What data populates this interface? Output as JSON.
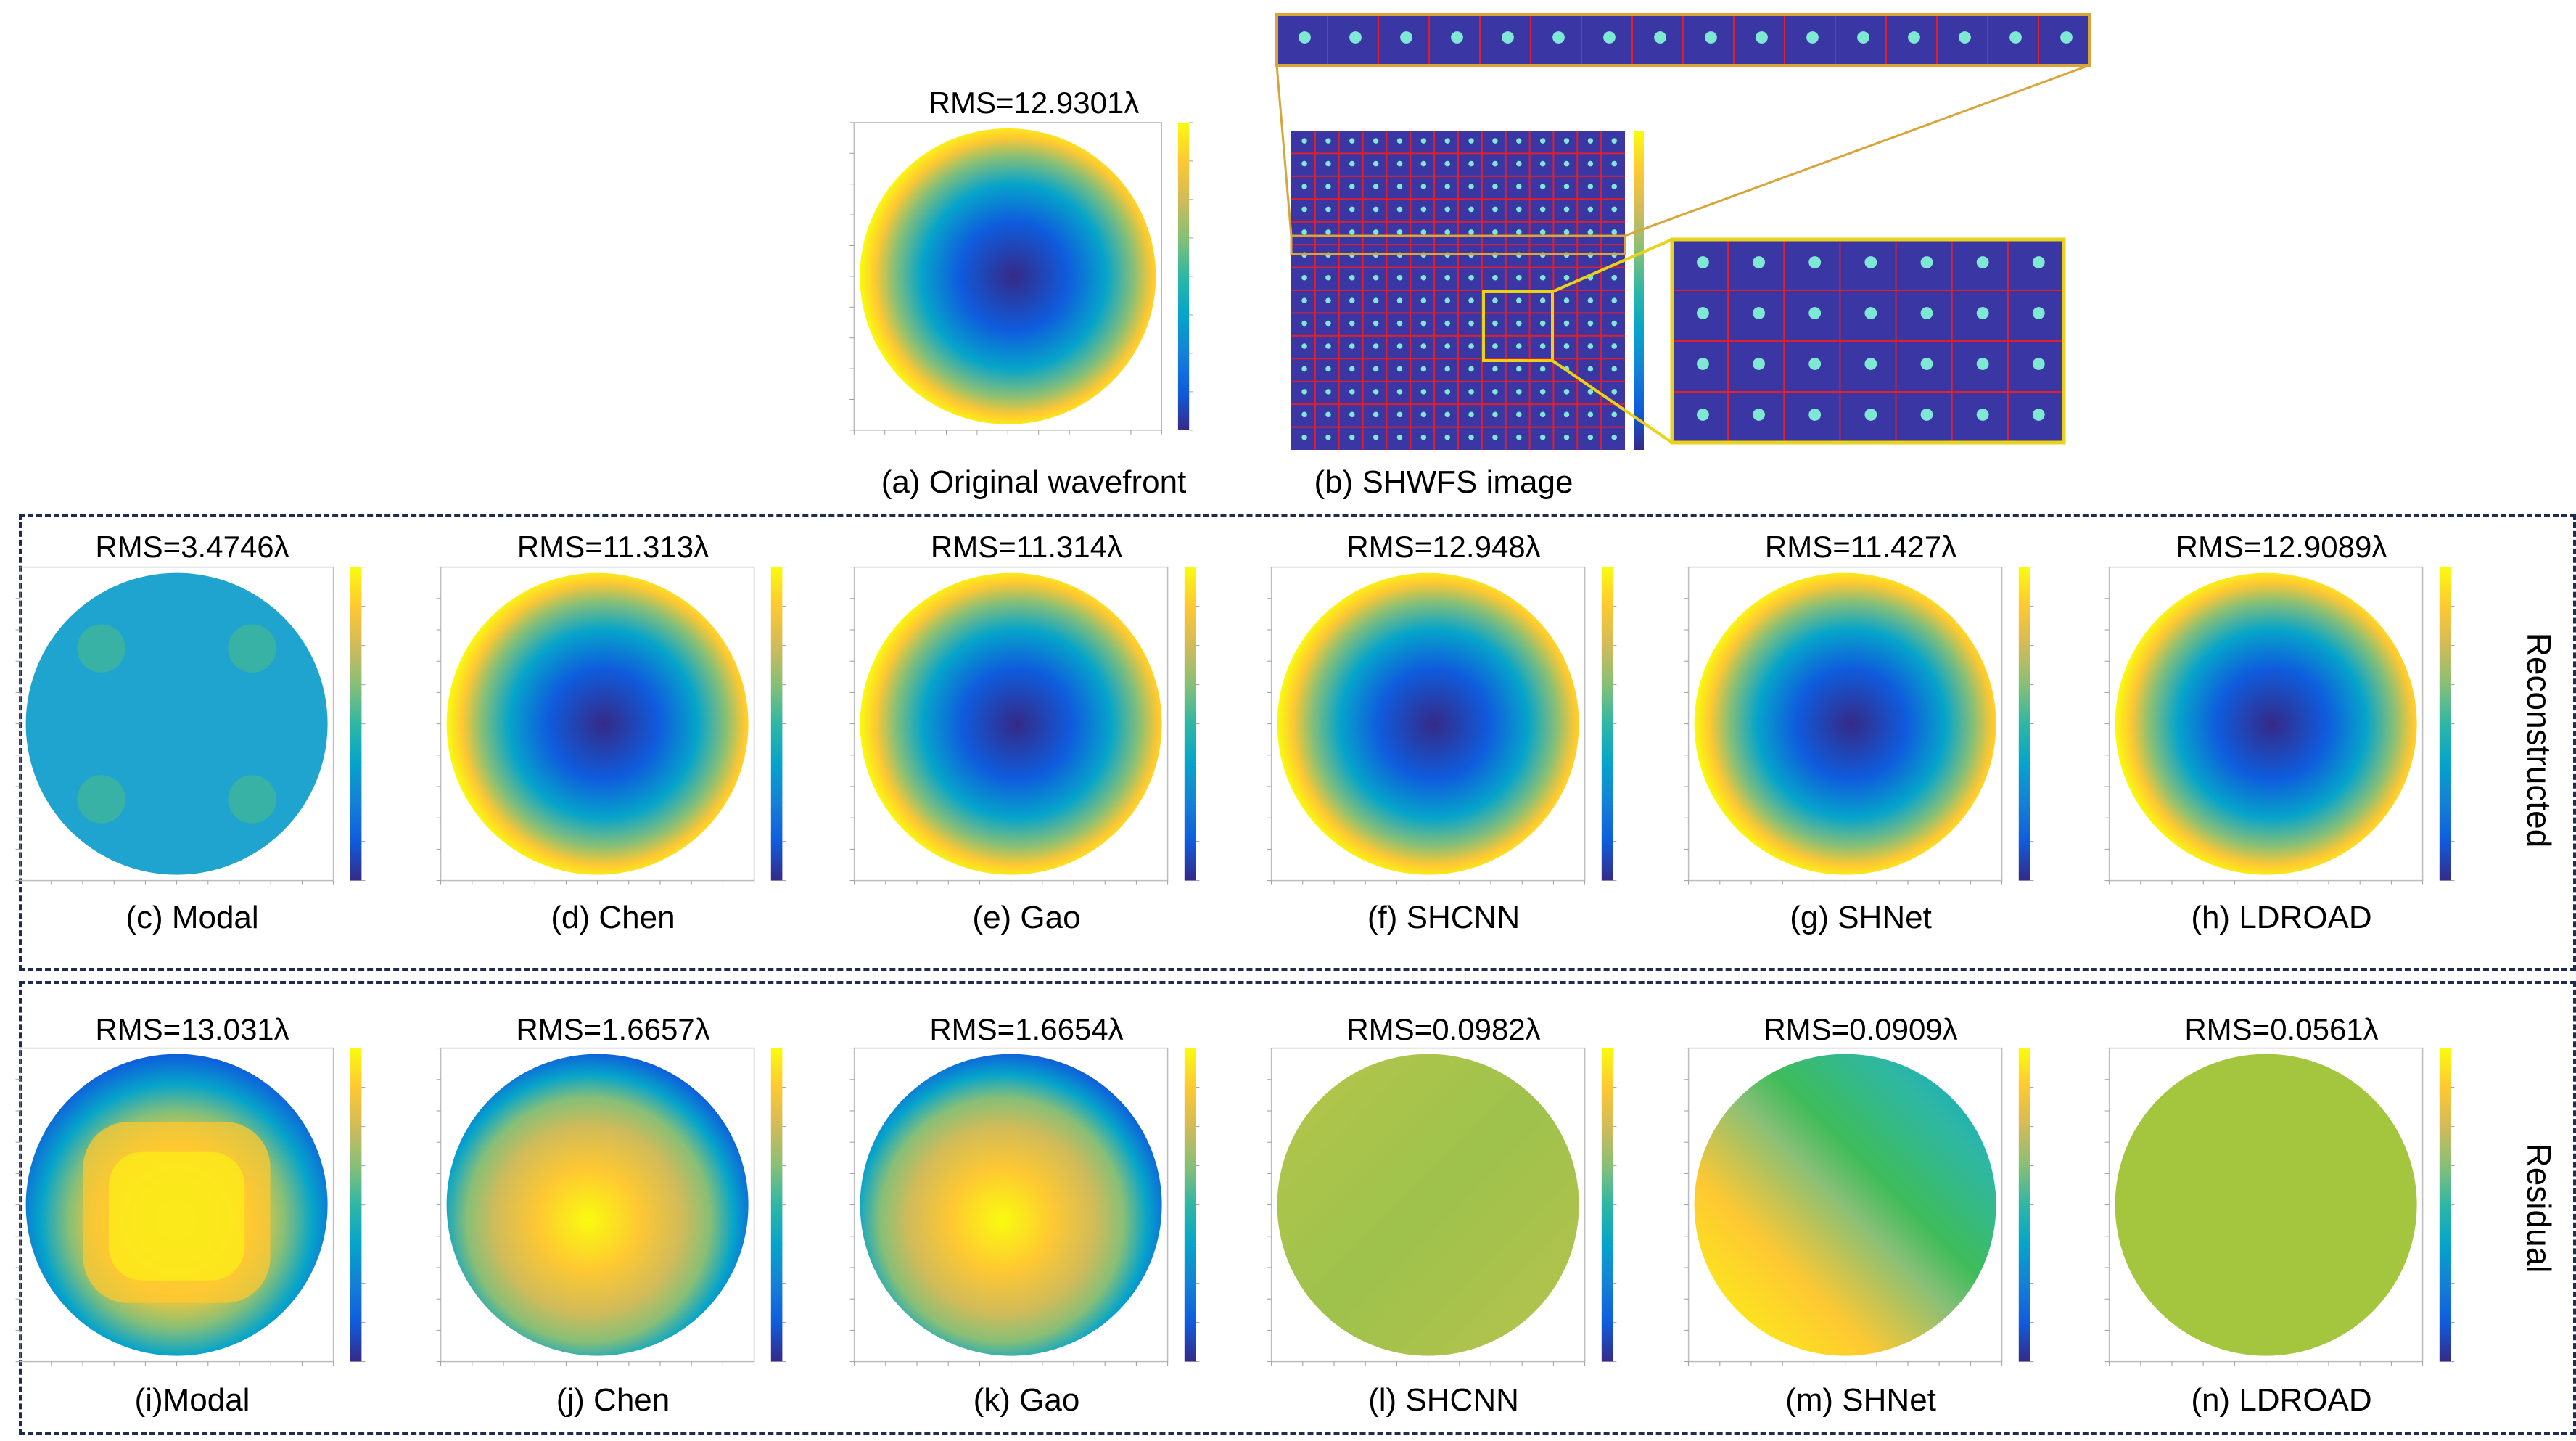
{
  "original": {
    "title": "RMS=12.9301λ",
    "caption": "(a) Original wavefront"
  },
  "shwfs": {
    "caption": "(b) SHWFS image"
  },
  "row_labels": {
    "reconstructed": "Reconstructed",
    "residual": "Residual"
  },
  "reconstructed": [
    {
      "title": "RMS=3.4746λ",
      "caption": "(c) Modal",
      "pattern": "modal-recon"
    },
    {
      "title": "RMS=11.313λ",
      "caption": "(d) Chen",
      "pattern": "bowl"
    },
    {
      "title": "RMS=11.314λ",
      "caption": "(e) Gao",
      "pattern": "bowl"
    },
    {
      "title": "RMS=12.948λ",
      "caption": "(f) SHCNN",
      "pattern": "bowl"
    },
    {
      "title": "RMS=11.427λ",
      "caption": "(g) SHNet",
      "pattern": "bowl"
    },
    {
      "title": "RMS=12.9089λ",
      "caption": "(h) LDROAD",
      "pattern": "bowl"
    }
  ],
  "residual": [
    {
      "title": "RMS=13.031λ",
      "caption": "(i)Modal",
      "pattern": "square-dome"
    },
    {
      "title": "RMS=1.6657λ",
      "caption": "(j) Chen",
      "pattern": "dome"
    },
    {
      "title": "RMS=1.6654λ",
      "caption": "(k) Gao",
      "pattern": "dome"
    },
    {
      "title": "RMS=0.0982λ",
      "caption": "(l) SHCNN",
      "pattern": "flat"
    },
    {
      "title": "RMS=0.0909λ",
      "caption": "(m) SHNet",
      "pattern": "tilt"
    },
    {
      "title": "RMS=0.0561λ",
      "caption": "(n) LDROAD",
      "pattern": "flat-light"
    }
  ],
  "colors": {
    "parula": [
      "#352a87",
      "#0f5cdd",
      "#1481d6",
      "#06a4ca",
      "#2eb7a4",
      "#87bf77",
      "#d1bb59",
      "#fec832",
      "#f9fb0e"
    ],
    "shwfs_bg": "#3a37a5",
    "grid_line": "#e01f2c",
    "zoom_frame": "#e8d21a",
    "zoom_link": "#d9a43a",
    "box_border": "#1f2d4d"
  }
}
